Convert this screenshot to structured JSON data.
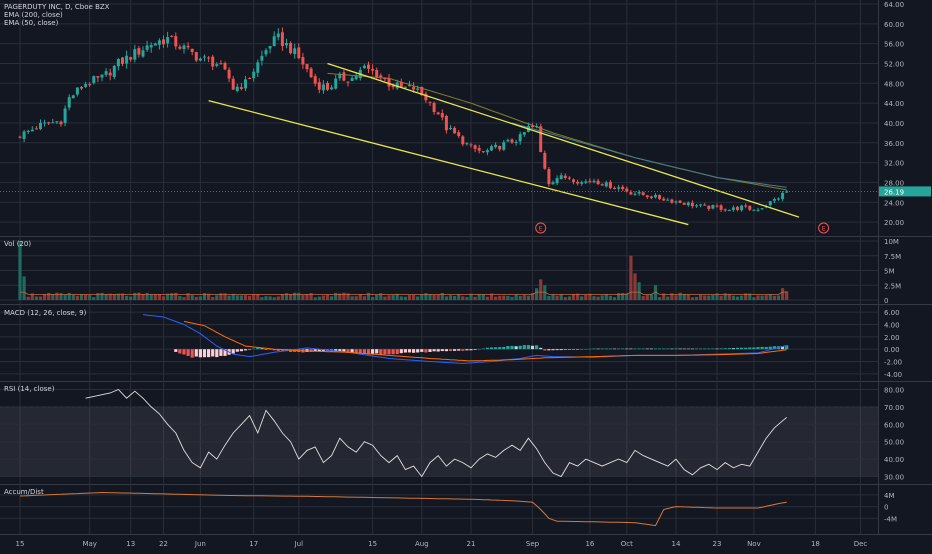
{
  "header": {
    "symbol_line": "PAGERDUTY INC, D, Cboe BZX",
    "ema200_label": "EMA (200, close)",
    "ema50_label": "EMA (50, close)"
  },
  "panes": {
    "vol_label": "Vol (20)",
    "macd_label": "MACD (12, 26, close, 9)",
    "rsi_label": "RSI (14, close)",
    "ad_label": "Accum/Dist"
  },
  "colors": {
    "background": "#131722",
    "up": "#26a69a",
    "down": "#ef5350",
    "trendline": "#e8e84a",
    "grid": "#2a2e39",
    "text": "#b2b5be"
  },
  "price_badge": "26.19",
  "earnings_marker": "E",
  "chart_data": [
    {
      "type": "candlestick",
      "name": "price",
      "y_ticks": [
        "64.00",
        "60.00",
        "56.00",
        "52.00",
        "48.00",
        "44.00",
        "40.00",
        "36.00",
        "32.00",
        "28.00",
        "24.00",
        "20.00"
      ],
      "ylim": [
        18,
        64
      ],
      "last_price": 26.19,
      "x_ticks": [
        "15",
        "May",
        "13",
        "22",
        "Jun",
        "17",
        "Jul",
        "15",
        "Aug",
        "21",
        "Sep",
        "16",
        "Oct",
        "14",
        "23",
        "Nov",
        "18",
        "Dec"
      ],
      "anchors": [
        [
          0,
          37.5
        ],
        [
          5,
          39.5
        ],
        [
          10,
          40.5
        ],
        [
          12,
          45
        ],
        [
          16,
          48
        ],
        [
          20,
          49
        ],
        [
          24,
          52
        ],
        [
          28,
          54
        ],
        [
          32,
          56
        ],
        [
          36,
          57
        ],
        [
          40,
          55
        ],
        [
          44,
          53
        ],
        [
          48,
          52
        ],
        [
          51,
          49
        ],
        [
          52,
          47
        ],
        [
          55,
          48
        ],
        [
          58,
          52
        ],
        [
          61,
          56
        ],
        [
          63,
          57
        ],
        [
          66,
          55
        ],
        [
          69,
          52
        ],
        [
          72,
          48
        ],
        [
          75,
          47
        ],
        [
          78,
          49
        ],
        [
          81,
          49
        ],
        [
          84,
          51
        ],
        [
          87,
          50
        ],
        [
          90,
          48
        ],
        [
          93,
          47
        ],
        [
          96,
          47
        ],
        [
          99,
          45
        ],
        [
          102,
          42
        ],
        [
          104,
          39
        ],
        [
          107,
          37
        ],
        [
          110,
          35
        ],
        [
          113,
          34
        ],
        [
          116,
          35
        ],
        [
          119,
          36
        ],
        [
          122,
          37
        ],
        [
          124,
          39
        ],
        [
          126,
          39
        ],
        [
          127,
          34
        ],
        [
          129,
          28
        ],
        [
          131,
          29
        ],
        [
          134,
          29
        ],
        [
          137,
          28
        ],
        [
          140,
          28.5
        ],
        [
          143,
          27.5
        ],
        [
          146,
          27
        ],
        [
          149,
          26
        ],
        [
          152,
          25.5
        ],
        [
          155,
          25
        ],
        [
          158,
          24.5
        ],
        [
          161,
          24
        ],
        [
          164,
          23.5
        ],
        [
          167,
          23
        ],
        [
          170,
          23
        ],
        [
          173,
          22.5
        ],
        [
          176,
          23
        ],
        [
          179,
          22.5
        ],
        [
          181,
          23
        ],
        [
          183,
          24
        ],
        [
          185,
          25
        ],
        [
          187,
          26.2
        ]
      ],
      "ema50_anchors": [
        [
          75,
          50
        ],
        [
          90,
          49
        ],
        [
          110,
          44
        ],
        [
          130,
          38
        ],
        [
          150,
          33
        ],
        [
          170,
          29
        ],
        [
          187,
          26.5
        ]
      ],
      "ema200_anchors": [
        [
          120,
          40
        ],
        [
          150,
          33
        ],
        [
          170,
          29
        ],
        [
          187,
          27
        ]
      ],
      "trendline_upper": [
        [
          75,
          52
        ],
        [
          190,
          21
        ]
      ],
      "trendline_lower": [
        [
          46,
          44.5
        ],
        [
          163,
          19.5
        ]
      ],
      "earnings_bars": [
        127,
        196
      ]
    },
    {
      "type": "bar",
      "name": "volume",
      "y_ticks": [
        "10M",
        "7.5M",
        "5M",
        "2.5M",
        "0"
      ],
      "ylim": [
        0,
        10
      ],
      "spikes": [
        [
          0,
          10
        ],
        [
          1,
          4
        ],
        [
          126,
          2
        ],
        [
          127,
          3.5
        ],
        [
          128,
          2.5
        ],
        [
          149,
          7.5
        ],
        [
          150,
          4.5
        ],
        [
          151,
          3
        ],
        [
          155,
          2.5
        ],
        [
          186,
          2
        ],
        [
          187,
          1.5
        ]
      ],
      "baseline": 0.9
    },
    {
      "type": "line",
      "name": "macd",
      "y_ticks": [
        "6.00",
        "4.00",
        "2.00",
        "0.00",
        "-2.00",
        "-4.00"
      ],
      "ylim": [
        -4.5,
        6.5
      ],
      "macd_anchors": [
        [
          30,
          5.6
        ],
        [
          35,
          5.2
        ],
        [
          40,
          4
        ],
        [
          44,
          2.5
        ],
        [
          48,
          0.5
        ],
        [
          52,
          -0.8
        ],
        [
          56,
          -1.2
        ],
        [
          62,
          -0.5
        ],
        [
          70,
          0.2
        ],
        [
          80,
          -0.5
        ],
        [
          90,
          -1.5
        ],
        [
          100,
          -2
        ],
        [
          108,
          -2.3
        ],
        [
          115,
          -2
        ],
        [
          122,
          -1.5
        ],
        [
          126,
          -1
        ],
        [
          130,
          -1.2
        ],
        [
          140,
          -1.3
        ],
        [
          150,
          -1
        ],
        [
          160,
          -1
        ],
        [
          170,
          -0.8
        ],
        [
          180,
          -0.6
        ],
        [
          187,
          0.6
        ]
      ],
      "signal_anchors": [
        [
          40,
          4.5
        ],
        [
          45,
          3.8
        ],
        [
          50,
          2
        ],
        [
          55,
          0.5
        ],
        [
          62,
          0
        ],
        [
          70,
          -0.3
        ],
        [
          80,
          -0.5
        ],
        [
          90,
          -1
        ],
        [
          100,
          -1.5
        ],
        [
          110,
          -1.9
        ],
        [
          120,
          -1.7
        ],
        [
          128,
          -1.4
        ],
        [
          140,
          -1.2
        ],
        [
          150,
          -1
        ],
        [
          160,
          -1
        ],
        [
          170,
          -0.9
        ],
        [
          180,
          -0.7
        ],
        [
          187,
          -0.1
        ]
      ],
      "hist_anchors": [
        [
          38,
          -0.5
        ],
        [
          42,
          -1.3
        ],
        [
          46,
          -1.5
        ],
        [
          50,
          -1
        ],
        [
          54,
          -0.3
        ],
        [
          58,
          0.2
        ],
        [
          62,
          -0.2
        ],
        [
          68,
          -0.5
        ],
        [
          74,
          -0.3
        ],
        [
          80,
          -0.6
        ],
        [
          86,
          -0.8
        ],
        [
          92,
          -0.7
        ],
        [
          98,
          -0.5
        ],
        [
          104,
          -0.3
        ],
        [
          110,
          -0.2
        ],
        [
          114,
          0.2
        ],
        [
          118,
          0.4
        ],
        [
          122,
          0.6
        ],
        [
          126,
          0.6
        ],
        [
          128,
          -0.2
        ],
        [
          134,
          -0.1
        ],
        [
          140,
          0.1
        ],
        [
          150,
          0.1
        ],
        [
          160,
          0.1
        ],
        [
          170,
          0.1
        ],
        [
          180,
          0.3
        ],
        [
          187,
          0.6
        ]
      ]
    },
    {
      "type": "line",
      "name": "rsi",
      "y_ticks": [
        "80.00",
        "70.00",
        "60.00",
        "50.00",
        "40.00",
        "30.00"
      ],
      "ylim": [
        28,
        82
      ],
      "upper_band": 70,
      "lower_band": 30,
      "anchors": [
        [
          16,
          75
        ],
        [
          20,
          77
        ],
        [
          22,
          78
        ],
        [
          24,
          80
        ],
        [
          26,
          75
        ],
        [
          28,
          79
        ],
        [
          30,
          75
        ],
        [
          32,
          70
        ],
        [
          34,
          66
        ],
        [
          36,
          60
        ],
        [
          38,
          55
        ],
        [
          40,
          45
        ],
        [
          42,
          38
        ],
        [
          44,
          35
        ],
        [
          46,
          44
        ],
        [
          48,
          40
        ],
        [
          50,
          48
        ],
        [
          52,
          55
        ],
        [
          54,
          60
        ],
        [
          56,
          65
        ],
        [
          58,
          55
        ],
        [
          60,
          68
        ],
        [
          62,
          62
        ],
        [
          64,
          55
        ],
        [
          66,
          50
        ],
        [
          68,
          40
        ],
        [
          70,
          45
        ],
        [
          72,
          47
        ],
        [
          74,
          38
        ],
        [
          76,
          42
        ],
        [
          78,
          52
        ],
        [
          80,
          47
        ],
        [
          82,
          44
        ],
        [
          84,
          50
        ],
        [
          86,
          48
        ],
        [
          88,
          42
        ],
        [
          90,
          38
        ],
        [
          92,
          42
        ],
        [
          94,
          34
        ],
        [
          96,
          36
        ],
        [
          98,
          30
        ],
        [
          100,
          38
        ],
        [
          102,
          42
        ],
        [
          104,
          36
        ],
        [
          106,
          40
        ],
        [
          108,
          38
        ],
        [
          110,
          35
        ],
        [
          112,
          40
        ],
        [
          114,
          43
        ],
        [
          116,
          41
        ],
        [
          118,
          45
        ],
        [
          120,
          48
        ],
        [
          122,
          45
        ],
        [
          124,
          52
        ],
        [
          126,
          46
        ],
        [
          128,
          38
        ],
        [
          130,
          32
        ],
        [
          132,
          30
        ],
        [
          134,
          38
        ],
        [
          136,
          36
        ],
        [
          138,
          40
        ],
        [
          140,
          38
        ],
        [
          142,
          36
        ],
        [
          144,
          38
        ],
        [
          146,
          40
        ],
        [
          148,
          38
        ],
        [
          150,
          45
        ],
        [
          152,
          42
        ],
        [
          154,
          40
        ],
        [
          156,
          38
        ],
        [
          158,
          36
        ],
        [
          160,
          40
        ],
        [
          162,
          34
        ],
        [
          164,
          31
        ],
        [
          166,
          35
        ],
        [
          168,
          37
        ],
        [
          170,
          34
        ],
        [
          172,
          38
        ],
        [
          174,
          35
        ],
        [
          176,
          37
        ],
        [
          178,
          36
        ],
        [
          180,
          44
        ],
        [
          182,
          52
        ],
        [
          184,
          58
        ],
        [
          186,
          62
        ],
        [
          187,
          64
        ]
      ]
    },
    {
      "type": "line",
      "name": "accum_dist",
      "y_ticks": [
        "4M",
        "0",
        "-4M"
      ],
      "ylim": [
        -8,
        6
      ],
      "anchors": [
        [
          0,
          3.6
        ],
        [
          20,
          4.8
        ],
        [
          30,
          4.5
        ],
        [
          50,
          3.8
        ],
        [
          70,
          3.5
        ],
        [
          90,
          3
        ],
        [
          110,
          2.5
        ],
        [
          120,
          2
        ],
        [
          125,
          1.5
        ],
        [
          127,
          -1
        ],
        [
          129,
          -4
        ],
        [
          131,
          -5
        ],
        [
          140,
          -5.2
        ],
        [
          150,
          -5.5
        ],
        [
          155,
          -6.5
        ],
        [
          157,
          -1
        ],
        [
          160,
          0
        ],
        [
          170,
          -0.5
        ],
        [
          180,
          -0.5
        ],
        [
          185,
          1
        ],
        [
          187,
          1.5
        ]
      ]
    }
  ]
}
